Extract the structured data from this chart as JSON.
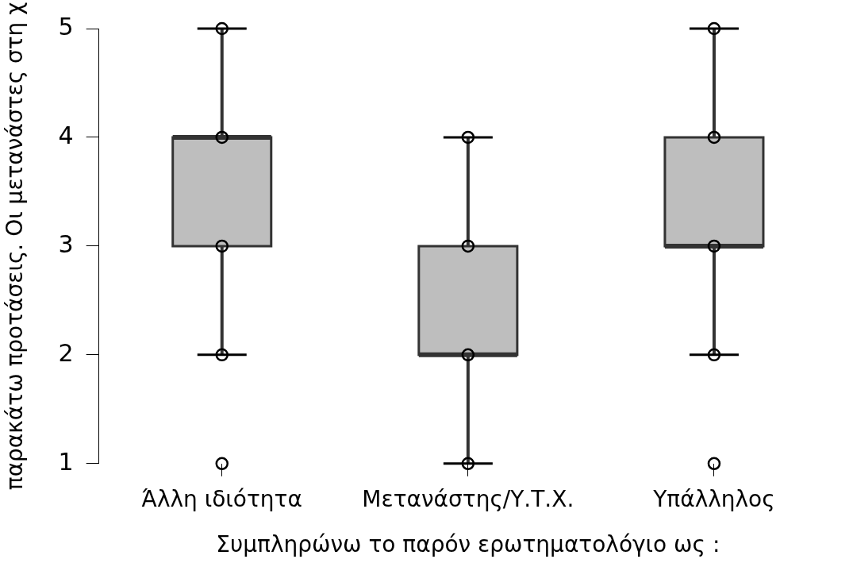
{
  "chart_data": {
    "type": "box",
    "xlabel": "Συμπληρώνω το παρόν ερωτηματολόγιο ως :",
    "ylabel": "παρακάτω προτάσεις. Οι μετανάστες στη χ",
    "categories": [
      "Άλλη ιδιότητα",
      "Μετανάστης/Υ.Τ.Χ.",
      "Υπάλληλος"
    ],
    "ylim": [
      1,
      5
    ],
    "yticks": [
      1,
      2,
      3,
      4,
      5
    ],
    "grid": false,
    "legend": false,
    "series": [
      {
        "type": "box",
        "color": "#bebebe",
        "boxes": [
          {
            "low": 2,
            "q1": 3,
            "median": 4,
            "q3": 4,
            "high": 5,
            "outliers": [
              1
            ]
          },
          {
            "low": 1,
            "q1": 2,
            "median": 2,
            "q3": 3,
            "high": 4
          },
          {
            "low": 2,
            "q1": 3,
            "median": 3,
            "q3": 4,
            "high": 5,
            "outliers": [
              1
            ]
          }
        ]
      },
      {
        "type": "scatter",
        "color": "#000000",
        "marker": "circle",
        "x": [
          "Άλλη ιδιότητα",
          "Άλλη ιδιότητα",
          "Άλλη ιδιότητα",
          "Άλλη ιδιότητα",
          "Μετανάστης/Υ.Τ.Χ.",
          "Μετανάστης/Υ.Τ.Χ.",
          "Μετανάστης/Υ.Τ.Χ.",
          "Μετανάστης/Υ.Τ.Χ.",
          "Υπάλληλος",
          "Υπάλληλος",
          "Υπάλληλος",
          "Υπάλληλος"
        ],
        "values": [
          2,
          3,
          4,
          5,
          1,
          2,
          3,
          4,
          2,
          3,
          4,
          5
        ]
      }
    ]
  }
}
